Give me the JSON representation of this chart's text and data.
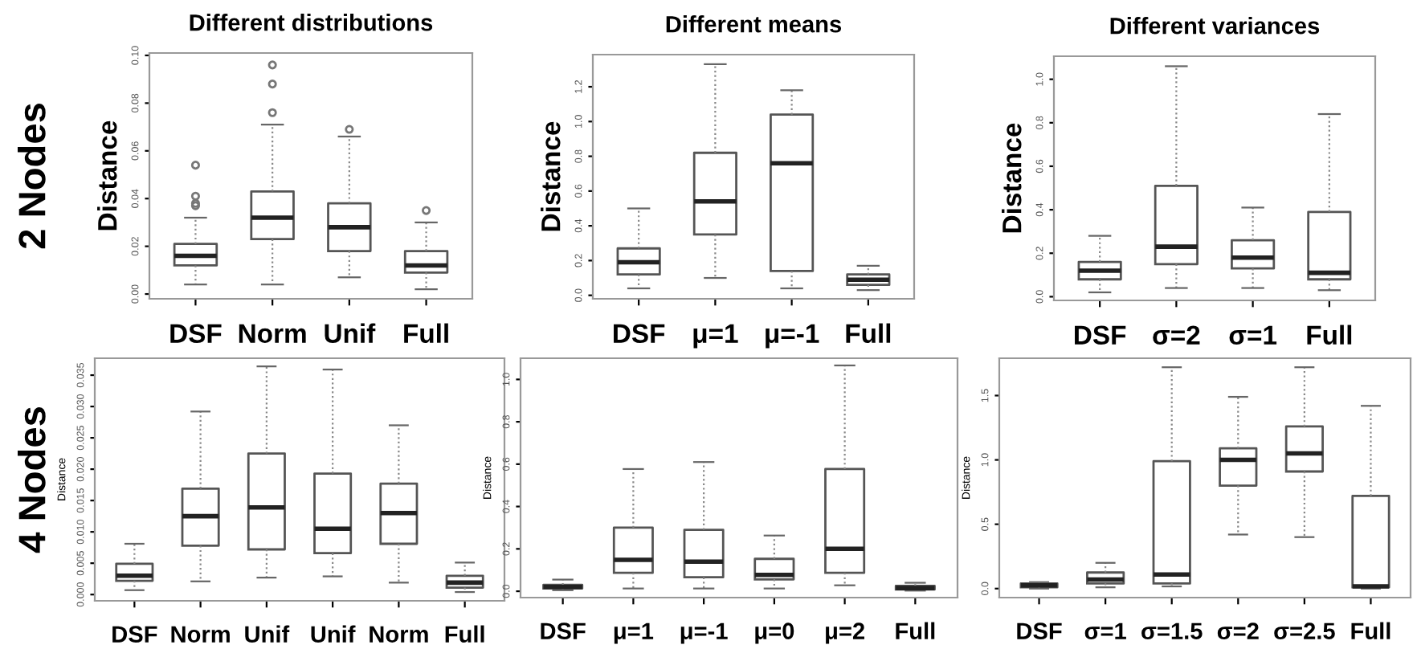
{
  "chart_data": [
    {
      "type": "box",
      "title": "Different distributions",
      "ylabel": "Distance",
      "annotations": [
        "2 Nodes"
      ],
      "categories": [
        "DSF",
        "Norm",
        "Unif",
        "Full"
      ],
      "ylim": [
        -0.002,
        0.101
      ],
      "yticks": [
        {
          "value": 0,
          "label": "0.00"
        },
        {
          "value": 0.02,
          "label": "0.02"
        },
        {
          "value": 0.04,
          "label": "0.04"
        },
        {
          "value": 0.06,
          "label": "0.06"
        },
        {
          "value": 0.08,
          "label": "0.08"
        },
        {
          "value": 0.1,
          "label": "0.10"
        }
      ],
      "boxes": [
        {
          "low": 0.004,
          "q1": 0.012,
          "median": 0.016,
          "q3": 0.021,
          "high": 0.032,
          "outliers": [
            0.037,
            0.038,
            0.041,
            0.054
          ]
        },
        {
          "low": 0.004,
          "q1": 0.023,
          "median": 0.032,
          "q3": 0.043,
          "high": 0.071,
          "outliers": [
            0.076,
            0.088,
            0.096
          ]
        },
        {
          "low": 0.007,
          "q1": 0.018,
          "median": 0.028,
          "q3": 0.038,
          "high": 0.066,
          "outliers": [
            0.069
          ]
        },
        {
          "low": 0.002,
          "q1": 0.009,
          "median": 0.012,
          "q3": 0.018,
          "high": 0.03,
          "outliers": [
            0.035
          ]
        }
      ]
    },
    {
      "type": "box",
      "title": "Different means",
      "ylabel": "Distance",
      "categories": [
        "DSF",
        "μ=1",
        "μ=-1",
        "Full"
      ],
      "ylim": [
        -0.02,
        1.385
      ],
      "yticks": [
        {
          "value": 0,
          "label": "0.0"
        },
        {
          "value": 0.2,
          "label": "0.2"
        },
        {
          "value": 0.4,
          "label": "0.4"
        },
        {
          "value": 0.6,
          "label": "0.6"
        },
        {
          "value": 0.8,
          "label": "0.8"
        },
        {
          "value": 1.0,
          "label": "1.0"
        },
        {
          "value": 1.2,
          "label": "1.2"
        }
      ],
      "boxes": [
        {
          "low": 0.04,
          "q1": 0.12,
          "median": 0.19,
          "q3": 0.27,
          "high": 0.5
        },
        {
          "low": 0.1,
          "q1": 0.35,
          "median": 0.54,
          "q3": 0.82,
          "high": 1.33
        },
        {
          "low": 0.04,
          "q1": 0.14,
          "median": 0.76,
          "q3": 1.04,
          "high": 1.18
        },
        {
          "low": 0.03,
          "q1": 0.06,
          "median": 0.09,
          "q3": 0.12,
          "high": 0.17
        }
      ]
    },
    {
      "type": "box",
      "title": "Different variances",
      "ylabel": "Distance",
      "categories": [
        "DSF",
        "σ=2",
        "σ=1",
        "Full"
      ],
      "ylim": [
        -0.017,
        1.106
      ],
      "yticks": [
        {
          "value": 0,
          "label": "0.0"
        },
        {
          "value": 0.2,
          "label": "0.2"
        },
        {
          "value": 0.4,
          "label": "0.4"
        },
        {
          "value": 0.6,
          "label": "0.6"
        },
        {
          "value": 0.8,
          "label": "0.8"
        },
        {
          "value": 1.0,
          "label": "1.0"
        }
      ],
      "boxes": [
        {
          "low": 0.02,
          "q1": 0.08,
          "median": 0.12,
          "q3": 0.16,
          "high": 0.28
        },
        {
          "low": 0.04,
          "q1": 0.15,
          "median": 0.23,
          "q3": 0.51,
          "high": 1.06
        },
        {
          "low": 0.04,
          "q1": 0.13,
          "median": 0.18,
          "q3": 0.26,
          "high": 0.41
        },
        {
          "low": 0.03,
          "q1": 0.08,
          "median": 0.11,
          "q3": 0.39,
          "high": 0.84
        }
      ]
    },
    {
      "type": "box",
      "ylabel": "Distance",
      "annotations": [
        "4 Nodes"
      ],
      "categories": [
        "DSF",
        "Norm",
        "Unif",
        "Unif",
        "Norm",
        "Full"
      ],
      "ylim": [
        -0.001,
        0.0377
      ],
      "yticks": [
        {
          "value": 0,
          "label": "0.000"
        },
        {
          "value": 0.005,
          "label": "0.005"
        },
        {
          "value": 0.01,
          "label": "0.010"
        },
        {
          "value": 0.015,
          "label": "0.015"
        },
        {
          "value": 0.02,
          "label": "0.020"
        },
        {
          "value": 0.025,
          "label": "0.025"
        },
        {
          "value": 0.03,
          "label": "0.030"
        },
        {
          "value": 0.035,
          "label": "0.035"
        }
      ],
      "boxes": [
        {
          "low": 0.0007,
          "q1": 0.0022,
          "median": 0.003,
          "q3": 0.0049,
          "high": 0.0081
        },
        {
          "low": 0.0021,
          "q1": 0.0078,
          "median": 0.0125,
          "q3": 0.0169,
          "high": 0.0292
        },
        {
          "low": 0.0027,
          "q1": 0.0072,
          "median": 0.0139,
          "q3": 0.0225,
          "high": 0.0364
        },
        {
          "low": 0.0029,
          "q1": 0.0066,
          "median": 0.0105,
          "q3": 0.0193,
          "high": 0.0359
        },
        {
          "low": 0.0019,
          "q1": 0.0081,
          "median": 0.013,
          "q3": 0.0177,
          "high": 0.027
        },
        {
          "low": 0.0004,
          "q1": 0.0011,
          "median": 0.0019,
          "q3": 0.003,
          "high": 0.0051
        }
      ]
    },
    {
      "type": "box",
      "ylabel": "Distance",
      "categories": [
        "DSF",
        "μ=1",
        "μ=-1",
        "μ=0",
        "μ=2",
        "Full"
      ],
      "ylim": [
        -0.03,
        1.1
      ],
      "yticks": [
        {
          "value": 0,
          "label": "0.0"
        },
        {
          "value": 0.2,
          "label": "0.2"
        },
        {
          "value": 0.4,
          "label": "0.4"
        },
        {
          "value": 0.6,
          "label": "0.6"
        },
        {
          "value": 0.8,
          "label": "0.8"
        },
        {
          "value": 1.0,
          "label": "1.0"
        }
      ],
      "boxes": [
        {
          "low": 0.005,
          "q1": 0.013,
          "median": 0.02,
          "q3": 0.03,
          "high": 0.055
        },
        {
          "low": 0.013,
          "q1": 0.087,
          "median": 0.148,
          "q3": 0.3,
          "high": 0.577
        },
        {
          "low": 0.013,
          "q1": 0.066,
          "median": 0.14,
          "q3": 0.29,
          "high": 0.61
        },
        {
          "low": 0.013,
          "q1": 0.056,
          "median": 0.077,
          "q3": 0.153,
          "high": 0.263
        },
        {
          "low": 0.028,
          "q1": 0.087,
          "median": 0.2,
          "q3": 0.577,
          "high": 1.066
        },
        {
          "low": 0.003,
          "q1": 0.008,
          "median": 0.015,
          "q3": 0.025,
          "high": 0.04
        }
      ]
    },
    {
      "type": "box",
      "ylabel": "Distance",
      "categories": [
        "DSF",
        "σ=1",
        "σ=1.5",
        "σ=2",
        "σ=2.5",
        "Full"
      ],
      "ylim": [
        -0.07,
        1.79
      ],
      "yticks": [
        {
          "value": 0,
          "label": "0.0"
        },
        {
          "value": 0.5,
          "label": "0.5"
        },
        {
          "value": 1.0,
          "label": "1.0"
        },
        {
          "value": 1.5,
          "label": "1.5"
        }
      ],
      "boxes": [
        {
          "low": 0.0,
          "q1": 0.01,
          "median": 0.025,
          "q3": 0.04,
          "high": 0.05
        },
        {
          "low": 0.01,
          "q1": 0.04,
          "median": 0.07,
          "q3": 0.125,
          "high": 0.2
        },
        {
          "low": 0.017,
          "q1": 0.04,
          "median": 0.11,
          "q3": 0.99,
          "high": 1.72
        },
        {
          "low": 0.42,
          "q1": 0.8,
          "median": 1.0,
          "q3": 1.09,
          "high": 1.49
        },
        {
          "low": 0.4,
          "q1": 0.91,
          "median": 1.05,
          "q3": 1.26,
          "high": 1.72
        },
        {
          "low": 0.0,
          "q1": 0.01,
          "median": 0.017,
          "q3": 0.72,
          "high": 1.42
        }
      ]
    }
  ]
}
